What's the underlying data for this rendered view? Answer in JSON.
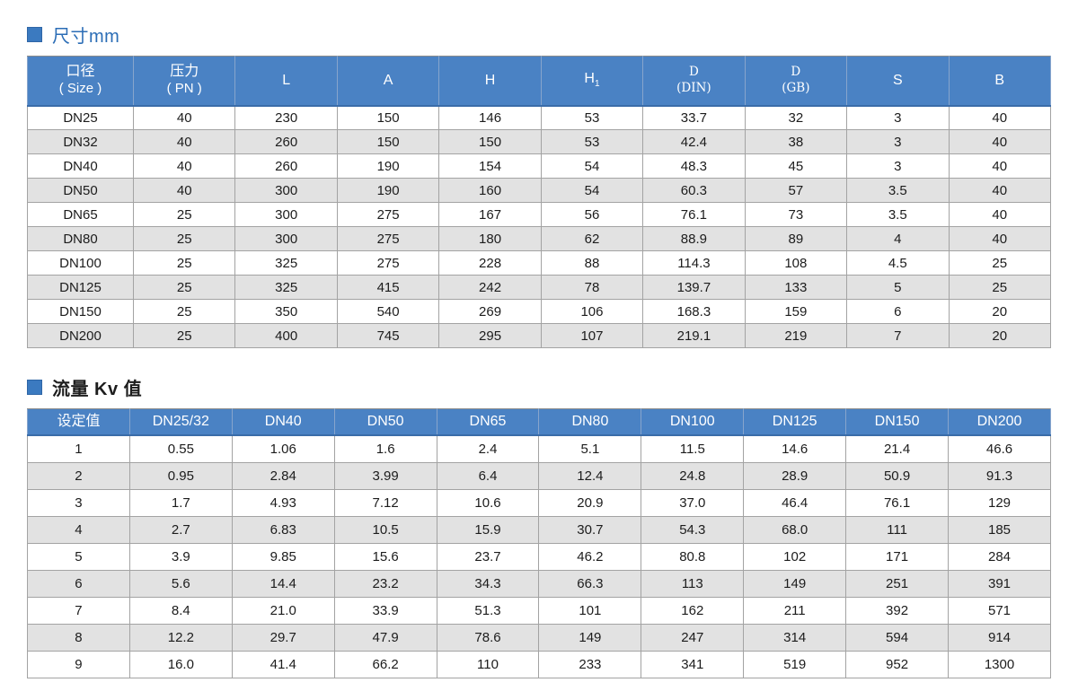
{
  "colors": {
    "header_bg": "#4a82c4",
    "stripe_gray": "#e2e2e2",
    "title_blue": "#2b6db6",
    "marker_blue": "#3b7ac0"
  },
  "dimensions_section": {
    "title": "尺寸mm",
    "table": {
      "columns": [
        {
          "top": "口径",
          "bottom": "( Size )"
        },
        {
          "top": "压力",
          "bottom": "( PN )"
        },
        {
          "top": "L"
        },
        {
          "top": "A"
        },
        {
          "top": "H"
        },
        {
          "top": "H",
          "sub": "1"
        },
        {
          "top": "D",
          "bottom": "(DIN)",
          "serif": true
        },
        {
          "top": "D",
          "bottom": "(GB)",
          "serif": true
        },
        {
          "top": "S"
        },
        {
          "top": "B"
        }
      ],
      "rows": [
        [
          "DN25",
          "40",
          "230",
          "150",
          "146",
          "53",
          "33.7",
          "32",
          "3",
          "40"
        ],
        [
          "DN32",
          "40",
          "260",
          "150",
          "150",
          "53",
          "42.4",
          "38",
          "3",
          "40"
        ],
        [
          "DN40",
          "40",
          "260",
          "190",
          "154",
          "54",
          "48.3",
          "45",
          "3",
          "40"
        ],
        [
          "DN50",
          "40",
          "300",
          "190",
          "160",
          "54",
          "60.3",
          "57",
          "3.5",
          "40"
        ],
        [
          "DN65",
          "25",
          "300",
          "275",
          "167",
          "56",
          "76.1",
          "73",
          "3.5",
          "40"
        ],
        [
          "DN80",
          "25",
          "300",
          "275",
          "180",
          "62",
          "88.9",
          "89",
          "4",
          "40"
        ],
        [
          "DN100",
          "25",
          "325",
          "275",
          "228",
          "88",
          "114.3",
          "108",
          "4.5",
          "25"
        ],
        [
          "DN125",
          "25",
          "325",
          "415",
          "242",
          "78",
          "139.7",
          "133",
          "5",
          "25"
        ],
        [
          "DN150",
          "25",
          "350",
          "540",
          "269",
          "106",
          "168.3",
          "159",
          "6",
          "20"
        ],
        [
          "DN200",
          "25",
          "400",
          "745",
          "295",
          "107",
          "219.1",
          "219",
          "7",
          "20"
        ]
      ]
    }
  },
  "flow_section": {
    "title": "流量 Kv 值",
    "table": {
      "columns": [
        {
          "top": "设定值"
        },
        {
          "top": "DN25/32"
        },
        {
          "top": "DN40"
        },
        {
          "top": "DN50"
        },
        {
          "top": "DN65"
        },
        {
          "top": "DN80"
        },
        {
          "top": "DN100"
        },
        {
          "top": "DN125"
        },
        {
          "top": "DN150"
        },
        {
          "top": "DN200"
        }
      ],
      "rows": [
        [
          "1",
          "0.55",
          "1.06",
          "1.6",
          "2.4",
          "5.1",
          "11.5",
          "14.6",
          "21.4",
          "46.6"
        ],
        [
          "2",
          "0.95",
          "2.84",
          "3.99",
          "6.4",
          "12.4",
          "24.8",
          "28.9",
          "50.9",
          "91.3"
        ],
        [
          "3",
          "1.7",
          "4.93",
          "7.12",
          "10.6",
          "20.9",
          "37.0",
          "46.4",
          "76.1",
          "129"
        ],
        [
          "4",
          "2.7",
          "6.83",
          "10.5",
          "15.9",
          "30.7",
          "54.3",
          "68.0",
          "111",
          "185"
        ],
        [
          "5",
          "3.9",
          "9.85",
          "15.6",
          "23.7",
          "46.2",
          "80.8",
          "102",
          "171",
          "284"
        ],
        [
          "6",
          "5.6",
          "14.4",
          "23.2",
          "34.3",
          "66.3",
          "113",
          "149",
          "251",
          "391"
        ],
        [
          "7",
          "8.4",
          "21.0",
          "33.9",
          "51.3",
          "101",
          "162",
          "211",
          "392",
          "571"
        ],
        [
          "8",
          "12.2",
          "29.7",
          "47.9",
          "78.6",
          "149",
          "247",
          "314",
          "594",
          "914"
        ],
        [
          "9",
          "16.0",
          "41.4",
          "66.2",
          "110",
          "233",
          "341",
          "519",
          "952",
          "1300"
        ]
      ]
    }
  }
}
